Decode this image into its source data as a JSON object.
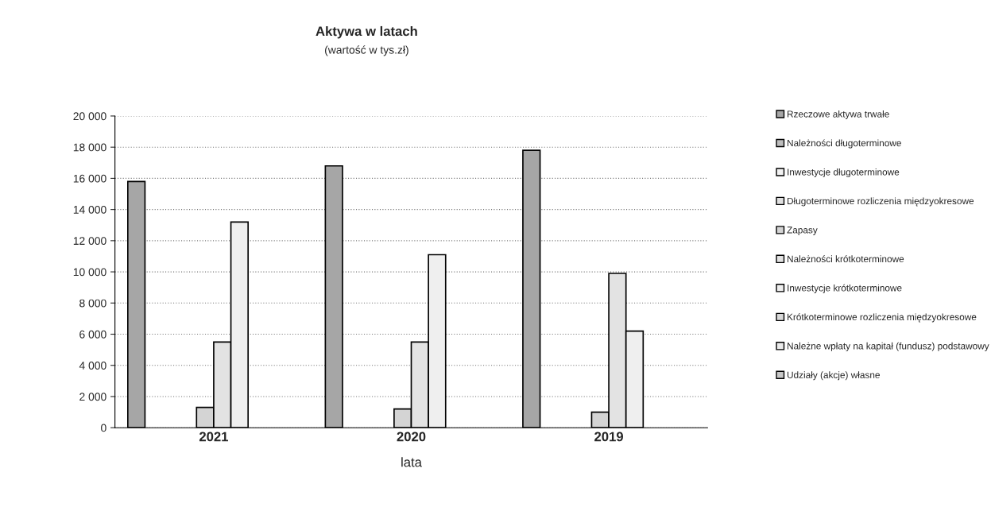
{
  "chart_data": {
    "type": "bar",
    "title": "Aktywa w latach",
    "subtitle": "(wartość w tys.zł)",
    "xlabel": "lata",
    "categories": [
      "2021",
      "2020",
      "2019"
    ],
    "series": [
      {
        "name": "Rzeczowe aktywa trwałe",
        "color": "#a6a6a6",
        "values": [
          15800,
          16800,
          17800
        ]
      },
      {
        "name": "Należności długoterminowe",
        "color": "#bdbdbd",
        "values": [
          0,
          0,
          0
        ]
      },
      {
        "name": "Inwestycje długoterminowe",
        "color": "#f2f2f2",
        "values": [
          0,
          0,
          0
        ]
      },
      {
        "name": "Długoterminowe rozliczenia międzyokresowe",
        "color": "#e0e0e0",
        "values": [
          0,
          0,
          0
        ]
      },
      {
        "name": "Zapasy",
        "color": "#d4d4d4",
        "values": [
          1300,
          1200,
          1000
        ]
      },
      {
        "name": "Należności krótkoterminowe",
        "color": "#e3e3e3",
        "values": [
          5500,
          5500,
          9900
        ]
      },
      {
        "name": "Inwestycje krótkoterminowe",
        "color": "#efefef",
        "values": [
          13200,
          11100,
          6200
        ]
      },
      {
        "name": "Krótkoterminowe rozliczenia międzyokresowe",
        "color": "#d9d9d9",
        "values": [
          0,
          0,
          0
        ]
      },
      {
        "name": "Należne wpłaty na kapitał (fundusz) podstawowy",
        "color": "#ebebeb",
        "values": [
          0,
          0,
          0
        ]
      },
      {
        "name": "Udziały (akcje) własne",
        "color": "#c8c8c8",
        "values": [
          0,
          0,
          0
        ]
      }
    ],
    "ylim": [
      0,
      20000
    ],
    "yticks": [
      {
        "value": 0,
        "label": "0"
      },
      {
        "value": 2000,
        "label": "2 000"
      },
      {
        "value": 4000,
        "label": "4 000"
      },
      {
        "value": 6000,
        "label": "6 000"
      },
      {
        "value": 8000,
        "label": "8 000"
      },
      {
        "value": 10000,
        "label": "10 000"
      },
      {
        "value": 12000,
        "label": "12 000"
      },
      {
        "value": 14000,
        "label": "14 000"
      },
      {
        "value": 16000,
        "label": "16 000"
      },
      {
        "value": 18000,
        "label": "18 000"
      },
      {
        "value": 20000,
        "label": "20 000"
      }
    ],
    "grid": "y",
    "legend": "right"
  }
}
